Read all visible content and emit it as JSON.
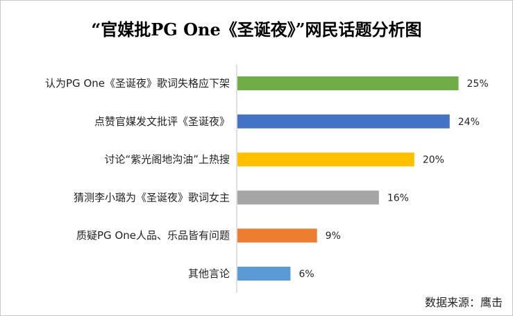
{
  "chart_data": {
    "type": "bar",
    "orientation": "horizontal",
    "title": "“官媒批PG One《圣诞夜》”网民话题分析图",
    "categories": [
      "认为PG One《圣诞夜》歌词失格应下架",
      "点赞官媒发文批评《圣诞夜》",
      "讨论“紫光阁地沟油”上热搜",
      "猜测李小璐为《圣诞夜》歌词女主",
      "质疑PG One人品、乐品皆有问题",
      "其他言论"
    ],
    "values": [
      25,
      24,
      20,
      16,
      9,
      6
    ],
    "value_labels": [
      "25%",
      "24%",
      "20%",
      "16%",
      "9%",
      "6%"
    ],
    "colors": [
      "#70ad47",
      "#4472c4",
      "#ffc000",
      "#a5a5a5",
      "#ed7d31",
      "#5b9bd5"
    ],
    "xlim": [
      0,
      27
    ],
    "grid": false,
    "legend": "none"
  },
  "source": "数据来源：鹰击"
}
